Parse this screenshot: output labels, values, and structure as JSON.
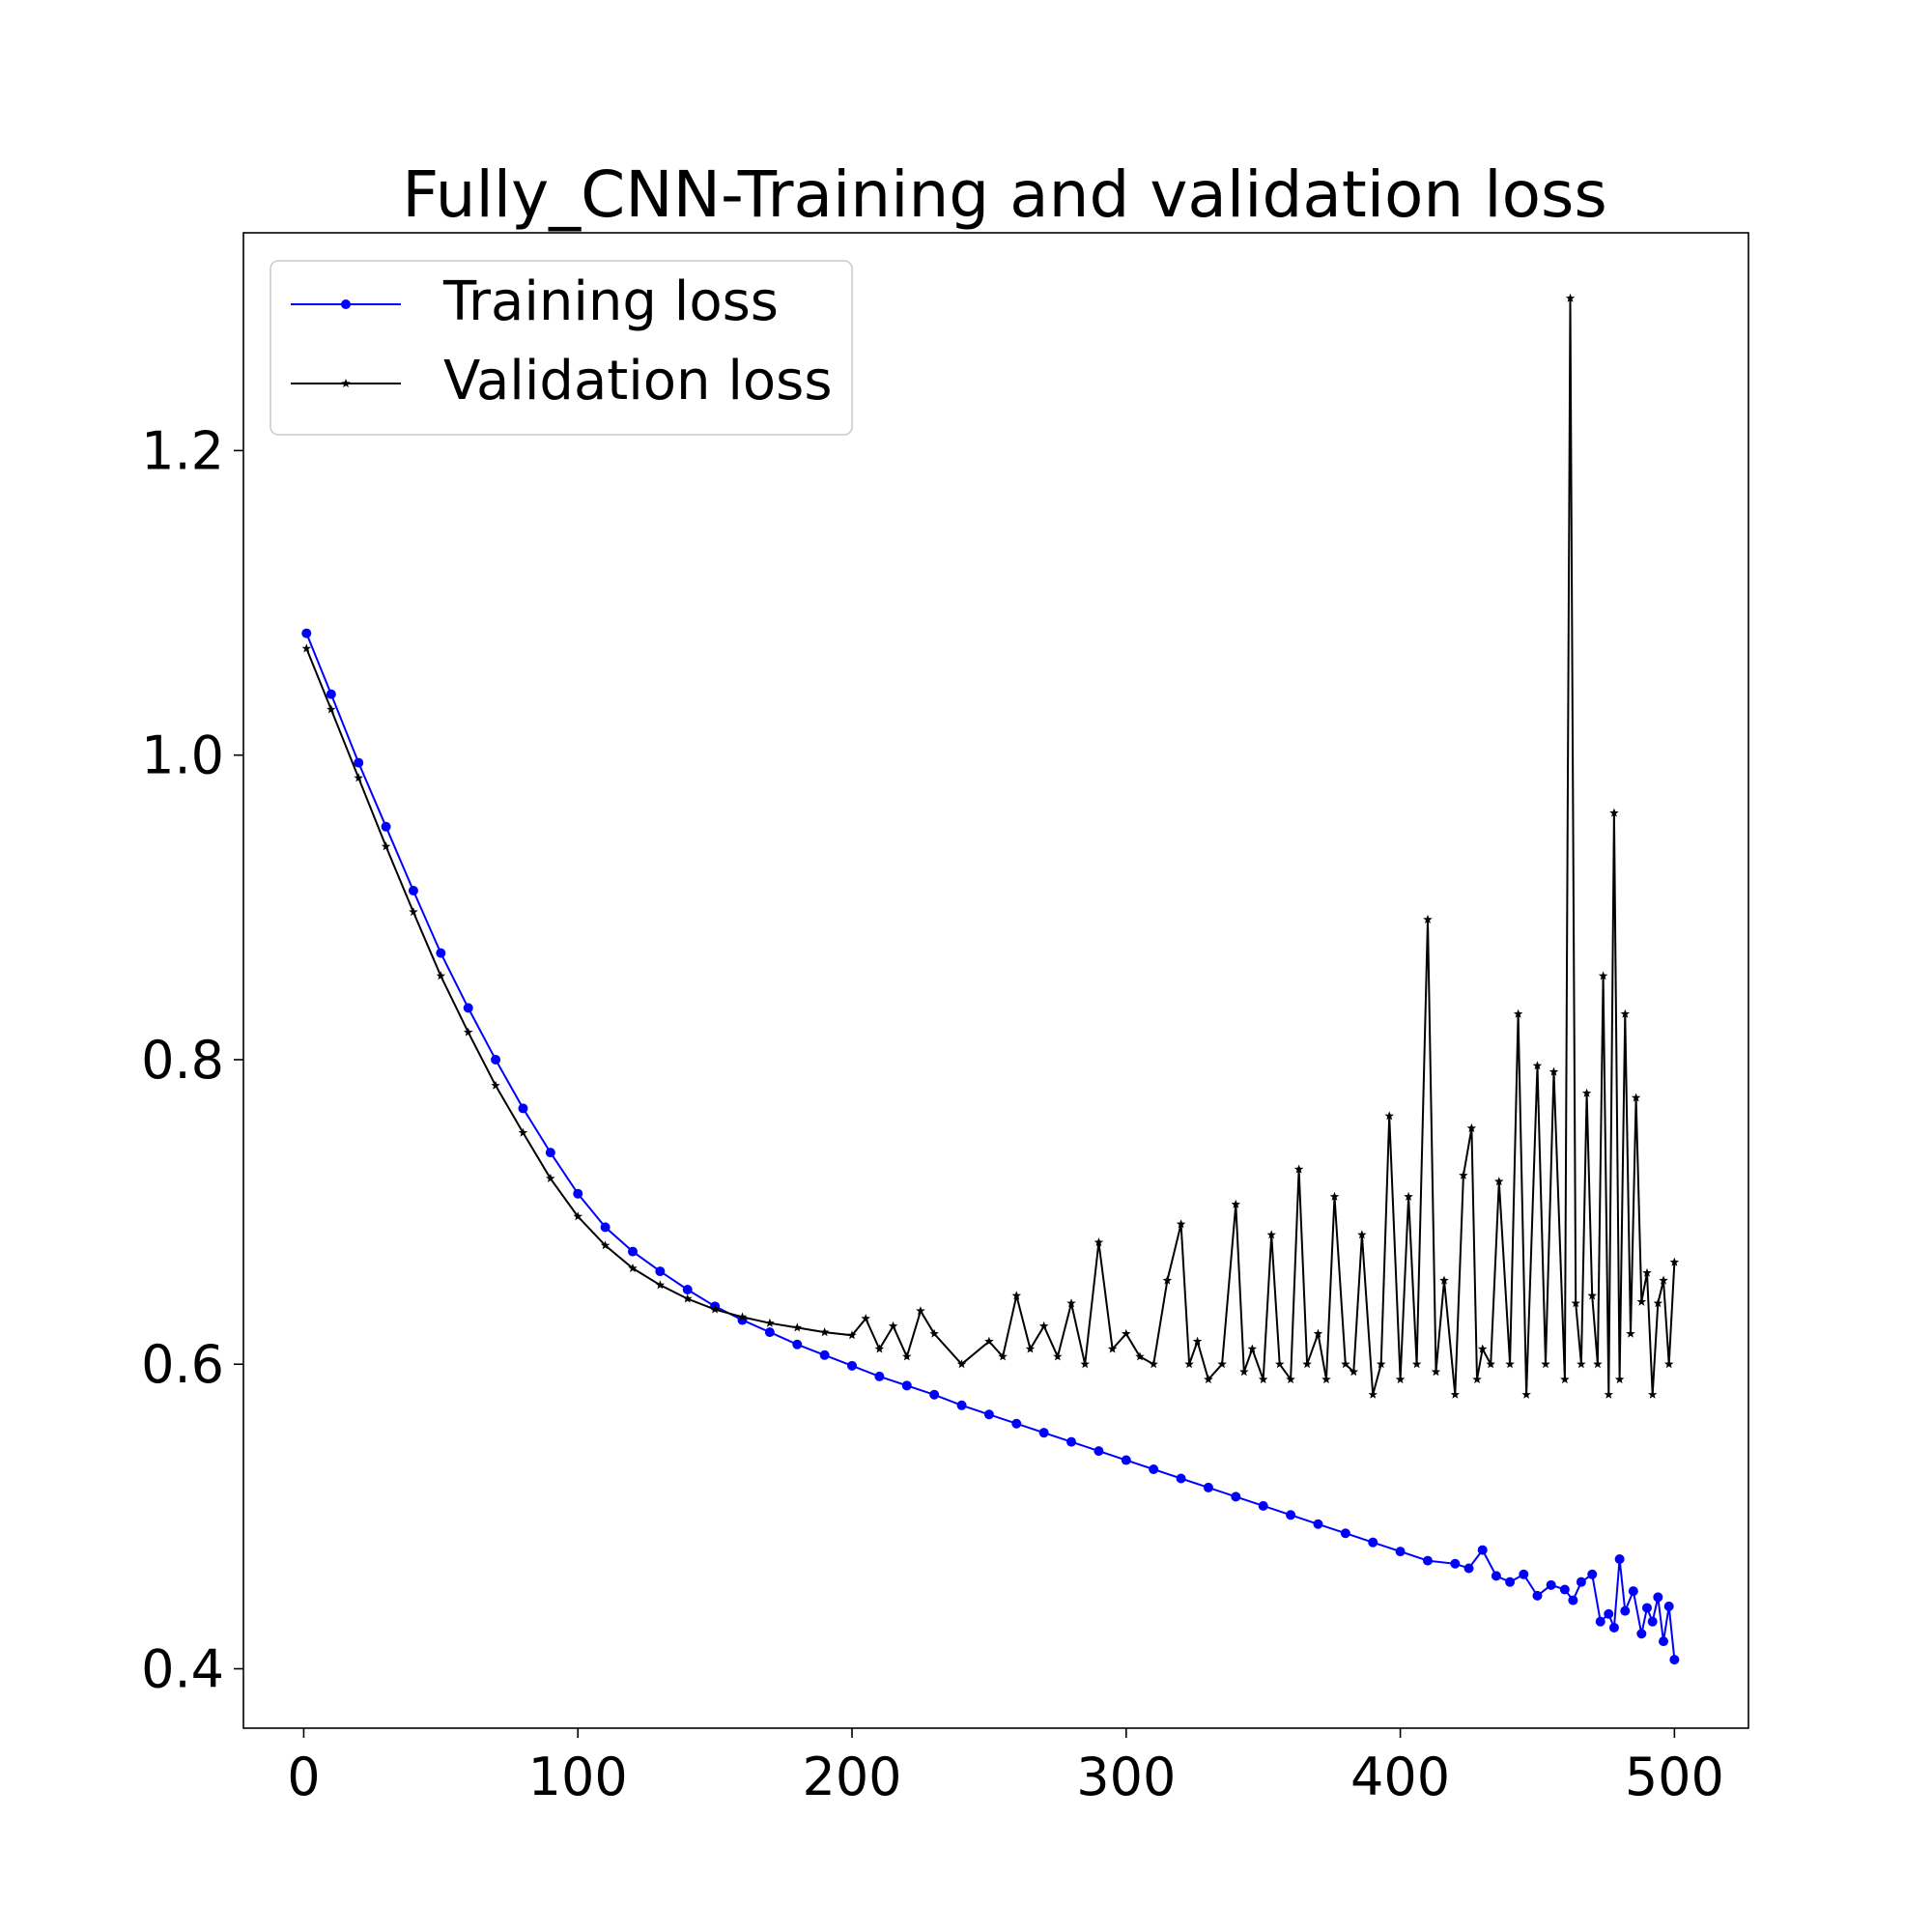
{
  "chart_data": {
    "type": "line",
    "title": "Fully_CNN-Training and validation loss",
    "xlabel": "",
    "ylabel": "",
    "xlim": [
      -22,
      527
    ],
    "ylim": [
      0.361,
      1.343
    ],
    "xticks": [
      0,
      100,
      200,
      300,
      400,
      500
    ],
    "yticks": [
      0.4,
      0.6,
      0.8,
      1.0,
      1.2
    ],
    "xtick_labels": [
      "0",
      "100",
      "200",
      "300",
      "400",
      "500"
    ],
    "ytick_labels": [
      "0.4",
      "0.6",
      "0.8",
      "1.0",
      "1.2"
    ],
    "grid": false,
    "legend_position": "top-left",
    "series": [
      {
        "name": "Training loss",
        "color": "#0000ff",
        "marker": "circle",
        "x": [
          1,
          10,
          20,
          30,
          40,
          50,
          60,
          70,
          80,
          90,
          100,
          110,
          120,
          130,
          140,
          150,
          160,
          170,
          180,
          190,
          200,
          210,
          220,
          230,
          240,
          250,
          260,
          270,
          280,
          290,
          300,
          310,
          320,
          330,
          340,
          350,
          360,
          370,
          380,
          390,
          400,
          410,
          420,
          425,
          430,
          435,
          440,
          445,
          450,
          455,
          460,
          463,
          466,
          470,
          473,
          476,
          478,
          480,
          482,
          485,
          488,
          490,
          492,
          494,
          496,
          498,
          500
        ],
        "y": [
          1.08,
          1.04,
          0.995,
          0.953,
          0.911,
          0.87,
          0.834,
          0.8,
          0.768,
          0.739,
          0.712,
          0.69,
          0.674,
          0.661,
          0.649,
          0.638,
          0.629,
          0.621,
          0.613,
          0.606,
          0.599,
          0.592,
          0.586,
          0.58,
          0.573,
          0.567,
          0.561,
          0.555,
          0.549,
          0.543,
          0.537,
          0.531,
          0.525,
          0.519,
          0.513,
          0.507,
          0.501,
          0.495,
          0.489,
          0.483,
          0.477,
          0.471,
          0.469,
          0.466,
          0.478,
          0.461,
          0.457,
          0.462,
          0.448,
          0.455,
          0.452,
          0.445,
          0.457,
          0.462,
          0.431,
          0.436,
          0.427,
          0.472,
          0.438,
          0.451,
          0.423,
          0.44,
          0.431,
          0.447,
          0.418,
          0.441,
          0.406
        ]
      },
      {
        "name": "Validation loss",
        "color": "#000000",
        "marker": "star",
        "x": [
          1,
          10,
          20,
          30,
          40,
          50,
          60,
          70,
          80,
          90,
          100,
          110,
          120,
          130,
          140,
          150,
          160,
          170,
          180,
          190,
          200,
          205,
          210,
          215,
          220,
          225,
          230,
          240,
          250,
          255,
          260,
          265,
          270,
          275,
          280,
          285,
          290,
          295,
          300,
          305,
          310,
          315,
          320,
          323,
          326,
          330,
          335,
          340,
          343,
          346,
          350,
          353,
          356,
          360,
          363,
          366,
          370,
          373,
          376,
          380,
          383,
          386,
          390,
          393,
          396,
          400,
          403,
          406,
          410,
          413,
          416,
          420,
          423,
          426,
          428,
          430,
          433,
          436,
          440,
          443,
          446,
          450,
          453,
          456,
          460,
          462,
          464,
          466,
          468,
          470,
          472,
          474,
          476,
          478,
          480,
          482,
          484,
          486,
          488,
          490,
          492,
          494,
          496,
          498,
          500
        ],
        "y": [
          1.07,
          1.03,
          0.985,
          0.94,
          0.897,
          0.855,
          0.818,
          0.783,
          0.752,
          0.722,
          0.697,
          0.678,
          0.663,
          0.652,
          0.643,
          0.636,
          0.631,
          0.627,
          0.624,
          0.621,
          0.619,
          0.63,
          0.61,
          0.625,
          0.605,
          0.635,
          0.62,
          0.6,
          0.615,
          0.605,
          0.645,
          0.61,
          0.625,
          0.605,
          0.64,
          0.6,
          0.68,
          0.61,
          0.62,
          0.605,
          0.6,
          0.655,
          0.692,
          0.6,
          0.615,
          0.59,
          0.6,
          0.705,
          0.595,
          0.61,
          0.59,
          0.685,
          0.6,
          0.59,
          0.728,
          0.6,
          0.62,
          0.59,
          0.71,
          0.6,
          0.595,
          0.685,
          0.58,
          0.6,
          0.763,
          0.59,
          0.71,
          0.6,
          0.892,
          0.595,
          0.655,
          0.58,
          0.724,
          0.755,
          0.59,
          0.61,
          0.6,
          0.72,
          0.6,
          0.83,
          0.58,
          0.796,
          0.6,
          0.792,
          0.59,
          1.3,
          0.64,
          0.6,
          0.778,
          0.645,
          0.6,
          0.855,
          0.58,
          0.962,
          0.59,
          0.83,
          0.62,
          0.775,
          0.641,
          0.66,
          0.58,
          0.64,
          0.655,
          0.6,
          0.667
        ]
      }
    ]
  }
}
